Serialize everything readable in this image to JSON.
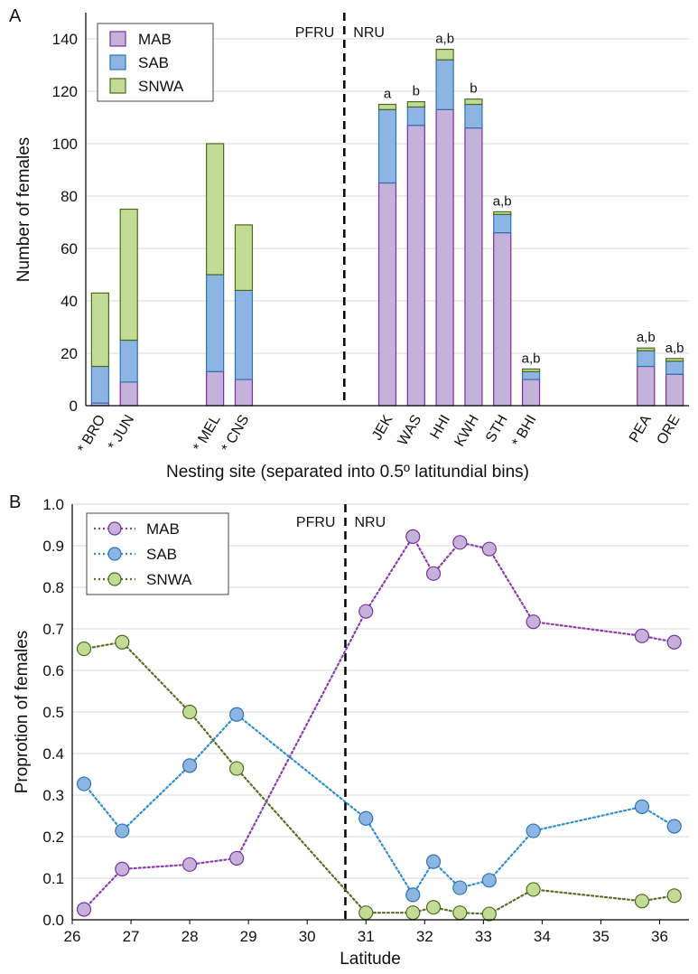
{
  "chart_data": [
    {
      "type": "bar",
      "panel_label": "A",
      "stacked": true,
      "ylabel": "Number of females",
      "xlabel": "Nesting site (separated into 0.5º latitundial bins)",
      "ylim": [
        0,
        150
      ],
      "yticks": [
        0,
        20,
        40,
        60,
        80,
        100,
        120,
        140
      ],
      "categories": [
        "BRO",
        "JUN",
        "MEL",
        "CNS",
        "JEK",
        "WAS",
        "HHI",
        "KWH",
        "STH",
        "BHI",
        "PEA",
        "ORE"
      ],
      "asterisk": [
        true,
        true,
        true,
        true,
        false,
        false,
        false,
        false,
        false,
        true,
        false,
        false
      ],
      "slot_index": [
        0,
        1,
        4,
        5,
        10,
        11,
        12,
        13,
        14,
        15,
        19,
        20
      ],
      "slot_count": 21,
      "series": [
        {
          "name": "MAB",
          "values": [
            1,
            9,
            13,
            10,
            85,
            107,
            113,
            106,
            66,
            10,
            15,
            12
          ]
        },
        {
          "name": "SAB",
          "values": [
            14,
            16,
            37,
            34,
            28,
            7,
            19,
            9,
            7,
            3,
            6,
            5
          ]
        },
        {
          "name": "SNWA",
          "values": [
            28,
            50,
            50,
            25,
            2,
            2,
            4,
            2,
            1,
            1,
            1,
            1
          ]
        }
      ],
      "annotations": [
        "",
        "",
        "",
        "",
        "a",
        "b",
        "a,b",
        "b",
        "a,b",
        "a,b",
        "a,b",
        "a,b"
      ],
      "divider_after_slot": 8.5,
      "region_left": "PFRU",
      "region_right": "NRU",
      "legend_position": "top-left",
      "grid": "horizontal"
    },
    {
      "type": "line",
      "panel_label": "B",
      "ylabel": "Proprotion of females",
      "xlabel": "Latitude",
      "xlim": [
        26,
        36.5
      ],
      "xticks": [
        26,
        27,
        28,
        29,
        30,
        31,
        32,
        33,
        34,
        35,
        36
      ],
      "ylim": [
        0,
        1.0
      ],
      "yticks": [
        0.0,
        0.1,
        0.2,
        0.3,
        0.4,
        0.5,
        0.6,
        0.7,
        0.8,
        0.9,
        1.0
      ],
      "series": [
        {
          "name": "MAB",
          "x": [
            26.2,
            26.85,
            28.0,
            28.8,
            31.0,
            31.8,
            32.15,
            32.6,
            33.1,
            33.85,
            35.7,
            36.25
          ],
          "y": [
            0.025,
            0.122,
            0.133,
            0.148,
            0.742,
            0.922,
            0.833,
            0.908,
            0.892,
            0.717,
            0.683,
            0.668
          ]
        },
        {
          "name": "SAB",
          "x": [
            26.2,
            26.85,
            28.0,
            28.8,
            31.0,
            31.8,
            32.15,
            32.6,
            33.1,
            33.85,
            35.7,
            36.25
          ],
          "y": [
            0.327,
            0.214,
            0.371,
            0.494,
            0.244,
            0.06,
            0.14,
            0.077,
            0.095,
            0.214,
            0.272,
            0.225
          ]
        },
        {
          "name": "SNWA",
          "x": [
            26.2,
            26.85,
            28.0,
            28.8,
            31.0,
            31.8,
            32.15,
            32.6,
            33.1,
            33.85,
            35.7,
            36.25
          ],
          "y": [
            0.652,
            0.668,
            0.5,
            0.364,
            0.017,
            0.017,
            0.03,
            0.017,
            0.014,
            0.073,
            0.045,
            0.058
          ]
        }
      ],
      "divider_x": 30.65,
      "region_left": "PFRU",
      "region_right": "NRU",
      "legend_position": "top-left",
      "grid": "horizontal"
    }
  ],
  "colors": {
    "MAB_fill": "#c5b2da",
    "MAB_edge": "#7a2f9a",
    "SAB_fill": "#8db5e3",
    "SAB_edge": "#2e74b5",
    "SNWA_fill": "#c2dc95",
    "SNWA_edge": "#4a6a1f",
    "MAB_line": "#8a3cb0",
    "SAB_line": "#2f8fd0",
    "SNWA_line": "#5a6e24",
    "grid": "#d9d9d9"
  }
}
